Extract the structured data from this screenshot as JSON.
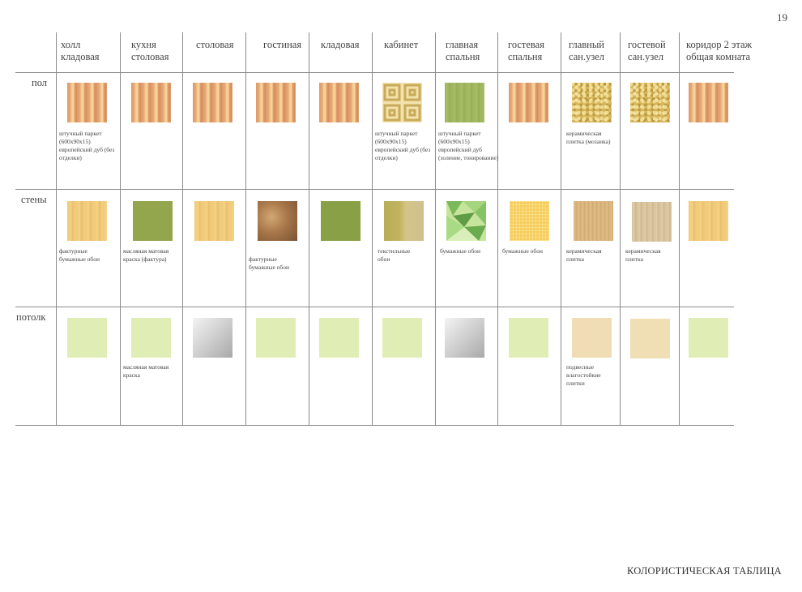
{
  "page_number": "19",
  "footer_title": "КОЛОРИСТИЧЕСКАЯ ТАБЛИЦА",
  "columns": [
    {
      "line1": "холл",
      "line2": "кладовая"
    },
    {
      "line1": "кухня",
      "line2": "столовая"
    },
    {
      "line1": "столовая",
      "line2": ""
    },
    {
      "line1": "гостиная",
      "line2": ""
    },
    {
      "line1": "кладовая",
      "line2": ""
    },
    {
      "line1": "кабинет",
      "line2": ""
    },
    {
      "line1": "главная",
      "line2": "спальня"
    },
    {
      "line1": "гостевая",
      "line2": "спальня"
    },
    {
      "line1": "главный",
      "line2": "сан.узел"
    },
    {
      "line1": "гостевой",
      "line2": "сан.узел"
    },
    {
      "line1": "коридор 2 этаж",
      "line2": "общая комната"
    }
  ],
  "rows": [
    {
      "label": "пол"
    },
    {
      "label": "стены"
    },
    {
      "label": "потолк"
    }
  ],
  "notes": {
    "floor_parquet": "штучный паркет (600х90х15) европейский дуб (без отделки)",
    "floor_parquet_cabinet": "штучный паркет (600х90х15) европейский дуб (без отделки)",
    "floor_parquet_bedroom": "штучный паркет (600х90х15) европейский дуб (золение, тонирование)",
    "floor_ceramic_mosaic": "керамическая плитка (мозаика)",
    "wall_textured_paper_1": "фактурные бумажные обои",
    "wall_oil_paint": "масляная матовая краска (фактура)",
    "wall_textured_paper_2": "фактурные бумажные обои",
    "wall_textile": "текстильные обои",
    "wall_paper_bedroom": "бумажные обои",
    "wall_paper_guest": "бумажные обои",
    "wall_ceramic_main": "керамическая плитка",
    "wall_ceramic_guest": "керамическая плитка",
    "ceiling_oil_paint": "масляная матовая краска",
    "ceiling_moisture_tiles": "подвесные влагостойкие плитки"
  },
  "swatches": {
    "floor": [
      "parquet",
      "parquet",
      "parquet",
      "parquet",
      "parquet",
      "meander",
      "green-wood",
      "parquet",
      "mosaic",
      "mosaic",
      "parquet"
    ],
    "walls": [
      "paper-yellow",
      "olive",
      "paper-yellow",
      "bronze",
      "olive-dark",
      "textile",
      "leaves",
      "yellow-check",
      "wood-light",
      "wood-beige",
      "paper-yellow"
    ],
    "ceiling": [
      "ceiling-green",
      "ceiling-green",
      "ceiling-gray",
      "ceiling-green",
      "ceiling-green",
      "ceiling-green",
      "ceiling-gray",
      "ceiling-green",
      "ceiling-beige",
      "ceiling-beige2",
      "ceiling-green"
    ]
  }
}
